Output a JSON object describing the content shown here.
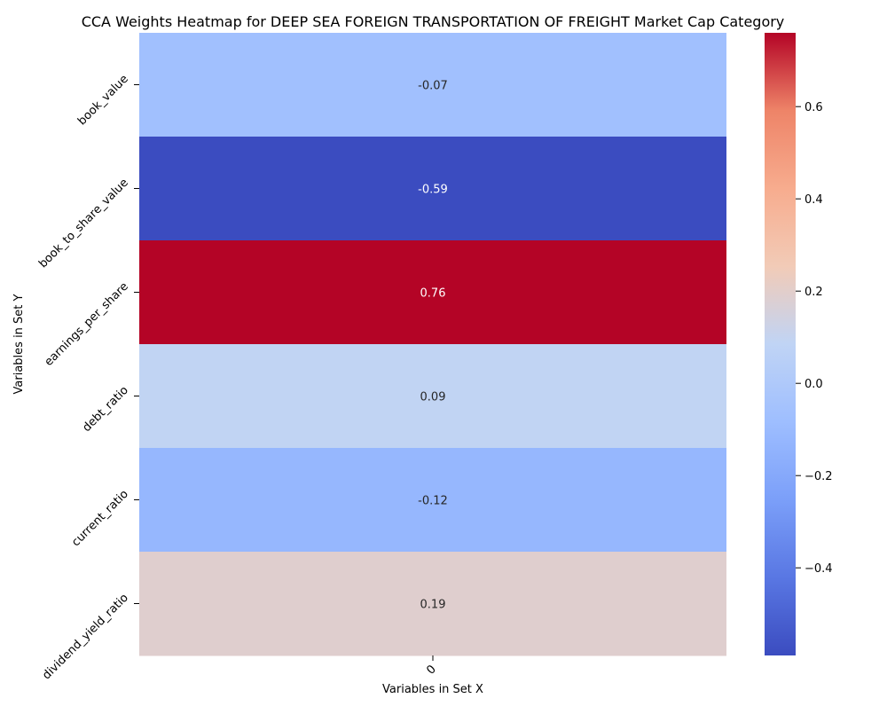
{
  "chart_data": {
    "type": "heatmap",
    "title": "CCA Weights Heatmap for DEEP SEA FOREIGN TRANSPORTATION OF FREIGHT Market Cap Category",
    "xlabel": "Variables in Set X",
    "ylabel": "Variables in Set Y",
    "x_categories": [
      "0"
    ],
    "y_categories": [
      "book_value",
      "book_to_share_value",
      "earnings_per_share",
      "debt_ratio",
      "current_ratio",
      "dividend_yield_ratio"
    ],
    "values": [
      [
        -0.07
      ],
      [
        -0.59
      ],
      [
        0.76
      ],
      [
        0.09
      ],
      [
        -0.12
      ],
      [
        0.19
      ]
    ],
    "colormap": "coolwarm",
    "colorbar": {
      "vmin": -0.59,
      "vmax": 0.76,
      "ticks": [
        -0.4,
        -0.2,
        0.0,
        0.2,
        0.4,
        0.6
      ],
      "tick_labels": [
        "−0.4",
        "−0.2",
        "0.0",
        "0.2",
        "0.4",
        "0.6"
      ]
    }
  }
}
